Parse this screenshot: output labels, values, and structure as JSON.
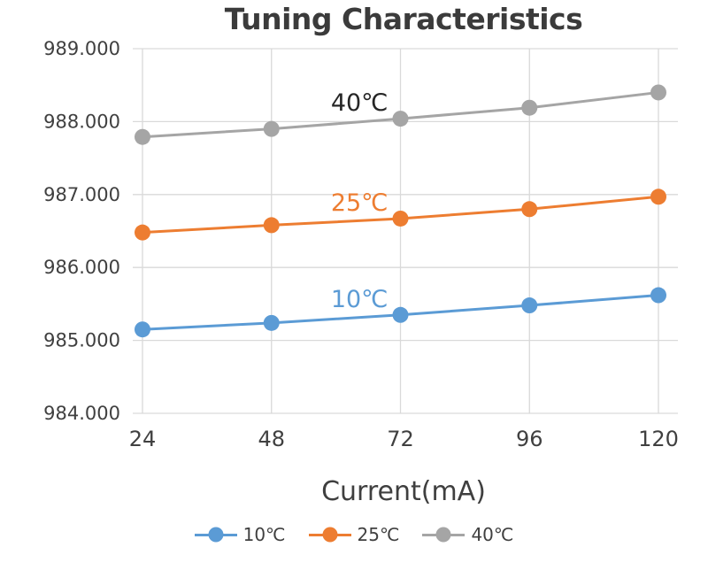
{
  "chart": {
    "title": "Tuning Characteristics",
    "x_axis_title": "Current(mA)"
  },
  "chart_data": {
    "type": "line",
    "title": "Tuning Characteristics",
    "xlabel": "Current(mA)",
    "ylabel": "",
    "x": [
      24,
      48,
      72,
      96,
      120
    ],
    "xtick_labels": [
      "24",
      "48",
      "72",
      "96",
      "120"
    ],
    "ylim": [
      984,
      989
    ],
    "ytick_step": 1,
    "ytick_labels": [
      "984.000",
      "985.000",
      "986.000",
      "987.000",
      "988.000",
      "989.000"
    ],
    "grid": true,
    "legend_position": "bottom",
    "series": [
      {
        "name": "10℃",
        "color": "#5B9BD5",
        "values": [
          985.15,
          985.24,
          985.35,
          985.48,
          985.62
        ]
      },
      {
        "name": "25℃",
        "color": "#ED7D31",
        "values": [
          986.48,
          986.58,
          986.67,
          986.8,
          986.97
        ]
      },
      {
        "name": "40℃",
        "color": "#A5A5A5",
        "values": [
          987.79,
          987.9,
          988.04,
          988.19,
          988.4
        ]
      }
    ],
    "annotations": [
      {
        "text": "10℃",
        "x": 72,
        "y": 985.35,
        "color": "#5B9BD5"
      },
      {
        "text": "25℃",
        "x": 72,
        "y": 986.67,
        "color": "#ED7D31"
      },
      {
        "text": "40℃",
        "x": 72,
        "y": 988.04,
        "color": "#262626"
      }
    ],
    "style": {
      "grid_color": "#D9D9D9",
      "tick_label_color": "#404040",
      "title_color": "#3B3B3B",
      "marker_radius": 9,
      "line_width": 3
    }
  }
}
